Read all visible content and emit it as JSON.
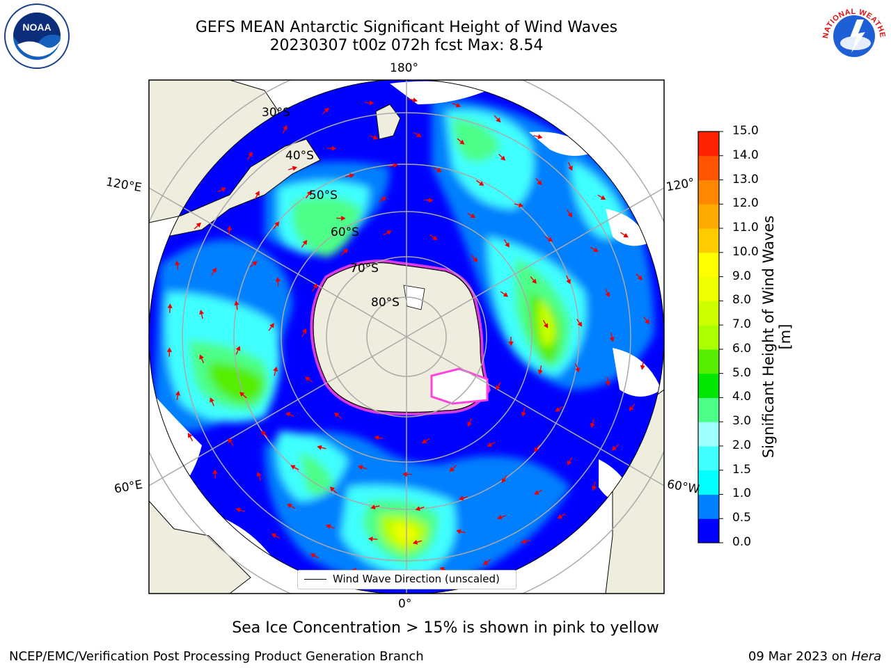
{
  "header": {
    "title_line1": "GEFS MEAN Antarctic Significant Height of Wind Waves",
    "title_line2": "20230307 t00z 072h fcst   Max: 8.54"
  },
  "logos": {
    "left": "NOAA",
    "right": "NATIONAL WEATHER SERVICE"
  },
  "map": {
    "longitude_labels": [
      "180°",
      "120°E",
      "120°",
      "60°E",
      "60°W",
      "0°"
    ],
    "latitude_labels": [
      "30°S",
      "40°S",
      "50°S",
      "60°S",
      "70°S",
      "80°S"
    ]
  },
  "legend": {
    "label": "Wind Wave Direction (unscaled)"
  },
  "colorbar": {
    "label": "Significant Height of Wind Waves [m]",
    "ticks": [
      "0.0",
      "0.5",
      "1.0",
      "1.5",
      "2.0",
      "3.0",
      "4.0",
      "5.0",
      "6.0",
      "7.0",
      "8.0",
      "9.0",
      "10.0",
      "11.0",
      "12.0",
      "13.0",
      "14.0",
      "15.0"
    ],
    "colors": [
      "#0000ff",
      "#0080ff",
      "#00ffff",
      "#40ffff",
      "#a0ffff",
      "#4dff88",
      "#00e600",
      "#55ee00",
      "#aaff00",
      "#ccff00",
      "#eeff00",
      "#ffff00",
      "#ffcc00",
      "#ffaa00",
      "#ff8800",
      "#ff5500",
      "#ff2200"
    ]
  },
  "caption": "Sea Ice Concentration > 15% is shown in pink to yellow",
  "footer": {
    "left": "NCEP/EMC/Verification Post Processing Product Generation Branch",
    "right_prefix": "09 Mar 2023 on",
    "right_host": "Hera"
  }
}
